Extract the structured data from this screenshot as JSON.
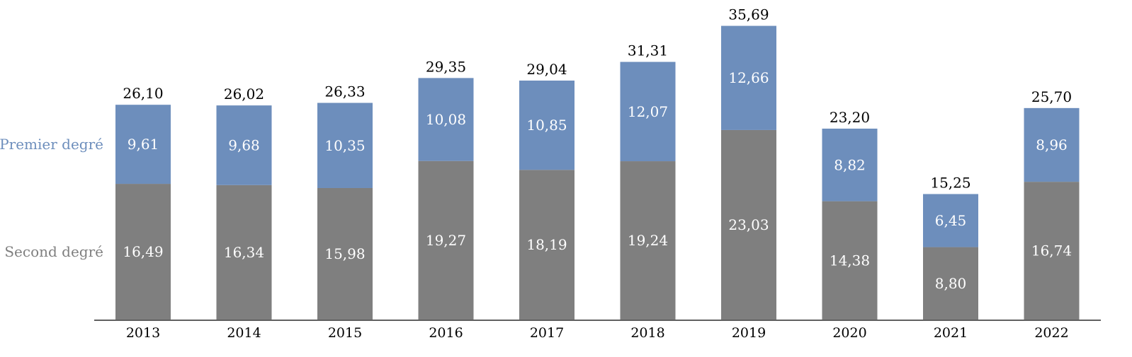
{
  "chart_data": {
    "type": "bar",
    "stacked": true,
    "categories": [
      "2013",
      "2014",
      "2015",
      "2016",
      "2017",
      "2018",
      "2019",
      "2020",
      "2021",
      "2022"
    ],
    "series": [
      {
        "name": "Second degré",
        "values": [
          16.49,
          16.34,
          15.98,
          19.27,
          18.19,
          19.24,
          23.03,
          14.38,
          8.8,
          16.74
        ],
        "labels": [
          "16,49",
          "16,34",
          "15,98",
          "19,27",
          "18,19",
          "19,24",
          "23,03",
          "14,38",
          "8,80",
          "16,74"
        ],
        "color": "#7f7f7f"
      },
      {
        "name": "Premier degré",
        "values": [
          9.61,
          9.68,
          10.35,
          10.08,
          10.85,
          12.07,
          12.66,
          8.82,
          6.45,
          8.96
        ],
        "labels": [
          "9,61",
          "9,68",
          "10,35",
          "10,08",
          "10,85",
          "12,07",
          "12,66",
          "8,82",
          "6,45",
          "8,96"
        ],
        "color": "#6d8ebc"
      }
    ],
    "totals": [
      26.1,
      26.02,
      26.33,
      29.35,
      29.04,
      31.31,
      35.69,
      23.2,
      15.25,
      25.7
    ],
    "total_labels": [
      "26,10",
      "26,02",
      "26,33",
      "29,35",
      "29,04",
      "31,31",
      "35,69",
      "23,20",
      "15,25",
      "25,70"
    ],
    "title": "",
    "xlabel": "",
    "ylabel": "",
    "ylim": [
      0,
      36
    ],
    "grid": false,
    "legend": "left"
  }
}
